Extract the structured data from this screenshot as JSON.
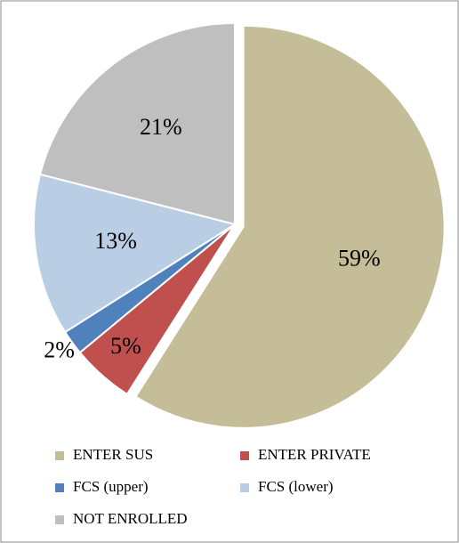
{
  "chart_data": {
    "type": "pie",
    "categories": [
      "ENTER SUS",
      "ENTER PRIVATE",
      "FCS (upper)",
      "FCS (lower)",
      "NOT ENROLLED"
    ],
    "values": [
      59,
      5,
      2,
      13,
      21
    ],
    "value_labels": [
      "59%",
      "5%",
      "2%",
      "13%",
      "21%"
    ],
    "colors": [
      "#c4bd97",
      "#c0504d",
      "#4f81bd",
      "#b9cde5",
      "#bfbfbf"
    ],
    "explode": [
      0
    ]
  }
}
